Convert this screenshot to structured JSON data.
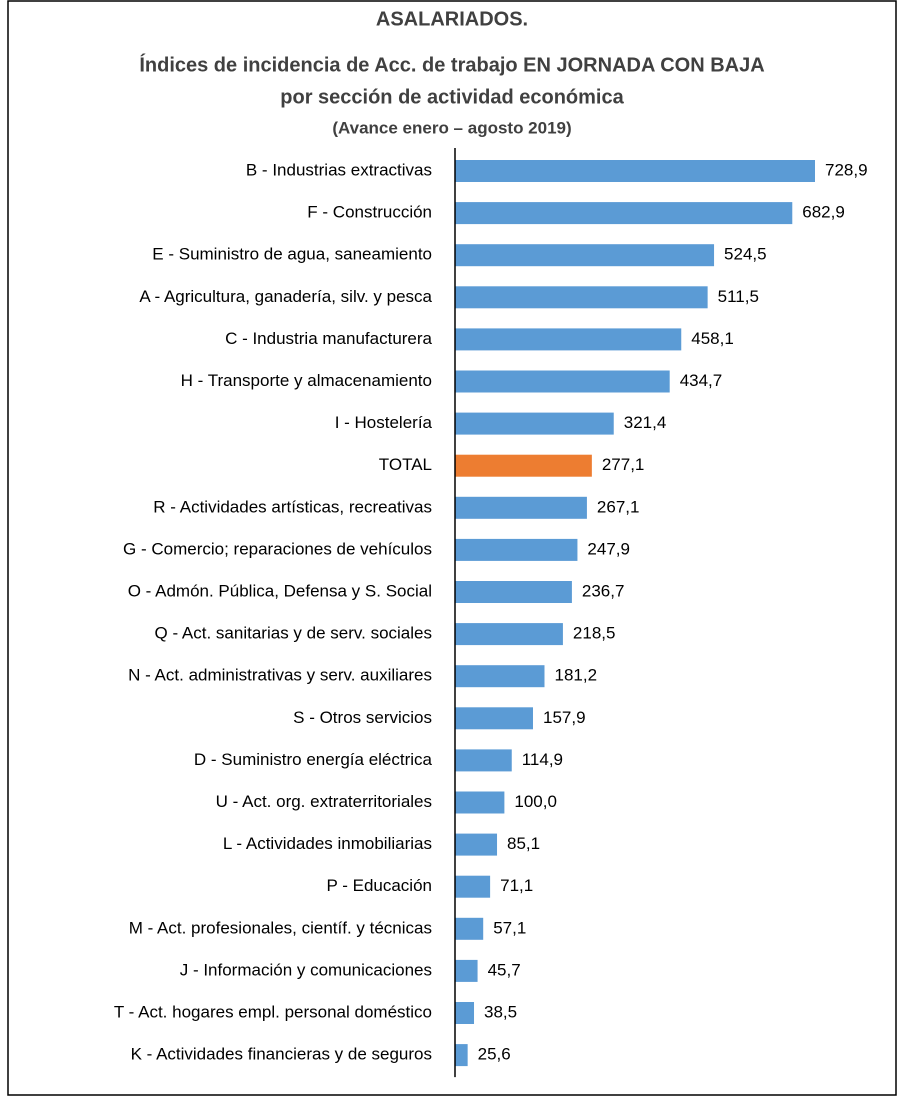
{
  "chart_data": {
    "type": "barh",
    "title": [
      "ASALARIADOS.",
      "Índices de incidencia de Acc. de trabajo EN JORNADA CON BAJA",
      "por sección de actividad económica"
    ],
    "subtitle": "(Avance enero – agosto 2019)",
    "categories": [
      "B - Industrias extractivas",
      "F - Construcción",
      "E - Suministro de agua, saneamiento",
      "A - Agricultura, ganadería, silv. y pesca",
      "C - Industria manufacturera",
      "H - Transporte y almacenamiento",
      "I - Hostelería",
      "TOTAL",
      "R - Actividades artísticas, recreativas",
      "G - Comercio; reparaciones de vehículos",
      "O - Admón. Pública, Defensa y S. Social",
      "Q - Act. sanitarias y de serv. sociales",
      "N - Act. administrativas y serv. auxiliares",
      "S - Otros servicios",
      "D - Suministro energía eléctrica",
      "U - Act. org. extraterritoriales",
      "L - Actividades inmobiliarias",
      "P - Educación",
      "M - Act. profesionales, científ. y técnicas",
      "J - Información y comunicaciones",
      "T - Act. hogares empl. personal doméstico",
      "K - Actividades financieras y de seguros"
    ],
    "values": [
      728.9,
      682.9,
      524.5,
      511.5,
      458.1,
      434.7,
      321.4,
      277.1,
      267.1,
      247.9,
      236.7,
      218.5,
      181.2,
      157.9,
      114.9,
      100.0,
      85.1,
      71.1,
      57.1,
      45.7,
      38.5,
      25.6
    ],
    "value_labels": [
      "728,9",
      "682,9",
      "524,5",
      "511,5",
      "458,1",
      "434,7",
      "321,4",
      "277,1",
      "267,1",
      "247,9",
      "236,7",
      "218,5",
      "181,2",
      "157,9",
      "114,9",
      "100,0",
      "85,1",
      "71,1",
      "57,1",
      "45,7",
      "38,5",
      "25,6"
    ],
    "colors": [
      "#5b9bd5",
      "#5b9bd5",
      "#5b9bd5",
      "#5b9bd5",
      "#5b9bd5",
      "#5b9bd5",
      "#5b9bd5",
      "#ed7d31",
      "#5b9bd5",
      "#5b9bd5",
      "#5b9bd5",
      "#5b9bd5",
      "#5b9bd5",
      "#5b9bd5",
      "#5b9bd5",
      "#5b9bd5",
      "#5b9bd5",
      "#5b9bd5",
      "#5b9bd5",
      "#5b9bd5",
      "#5b9bd5",
      "#5b9bd5"
    ]
  }
}
